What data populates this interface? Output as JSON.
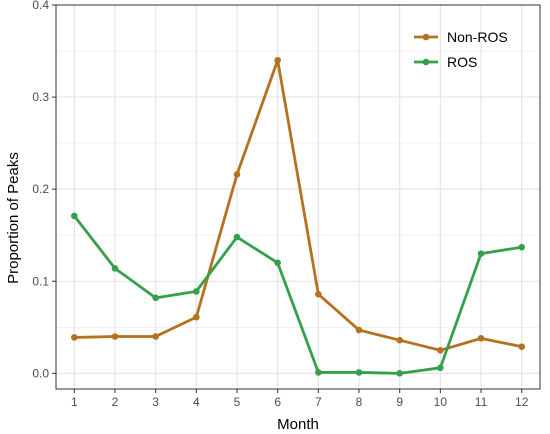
{
  "chart_data": {
    "type": "line",
    "xlabel": "Month",
    "ylabel": "Proportion of Peaks",
    "x": [
      1,
      2,
      3,
      4,
      5,
      6,
      7,
      8,
      9,
      10,
      11,
      12
    ],
    "xlim": [
      0.55,
      12.45
    ],
    "ylim": [
      -0.017,
      0.4
    ],
    "yticks": [
      0.0,
      0.1,
      0.2,
      0.3,
      0.4
    ],
    "ytick_labels": [
      "0.0",
      "0.1",
      "0.2",
      "0.3",
      "0.4"
    ],
    "xtick_labels": [
      "1",
      "2",
      "3",
      "4",
      "5",
      "6",
      "7",
      "8",
      "9",
      "10",
      "11",
      "12"
    ],
    "grid": true,
    "legend_position": "top-right",
    "series": [
      {
        "name": "Non-ROS",
        "color": "#b5711f",
        "values": [
          0.039,
          0.04,
          0.04,
          0.061,
          0.216,
          0.34,
          0.086,
          0.047,
          0.036,
          0.025,
          0.038,
          0.029
        ]
      },
      {
        "name": "ROS",
        "color": "#35a04a",
        "values": [
          0.171,
          0.114,
          0.082,
          0.089,
          0.148,
          0.12,
          0.001,
          0.001,
          0.0,
          0.006,
          0.13,
          0.137
        ]
      }
    ]
  }
}
